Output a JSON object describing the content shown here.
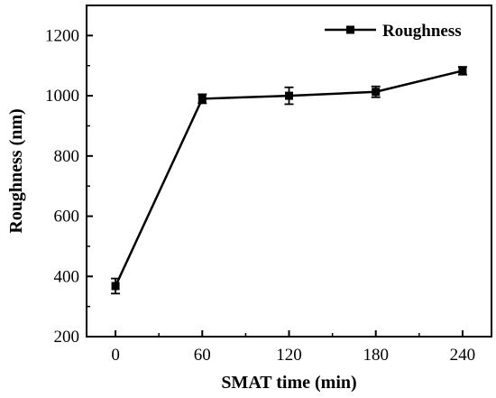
{
  "chart_data": {
    "type": "line",
    "title": "",
    "xlabel": "SMAT time (min)",
    "ylabel": "Roughness (nm)",
    "x_ticks": [
      "0",
      "60",
      "120",
      "180",
      "240"
    ],
    "y_ticks": [
      "200",
      "400",
      "600",
      "800",
      "1000",
      "1200"
    ],
    "xlim": [
      -20,
      260
    ],
    "ylim": [
      200,
      1300
    ],
    "legend_position": "top-right",
    "grid": false,
    "series": [
      {
        "name": "Roughness",
        "color": "#000000",
        "marker": "square",
        "x": [
          0,
          60,
          120,
          180,
          240
        ],
        "y": [
          368,
          990,
          1000,
          1013,
          1083
        ],
        "error": [
          25,
          15,
          28,
          18,
          13
        ]
      }
    ]
  }
}
